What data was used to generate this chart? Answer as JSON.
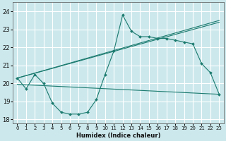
{
  "xlabel": "Humidex (Indice chaleur)",
  "bg_color": "#cce8ec",
  "grid_color": "#ffffff",
  "line_color": "#1a7a6e",
  "xlim": [
    -0.5,
    23.5
  ],
  "ylim": [
    17.8,
    24.5
  ],
  "yticks": [
    18,
    19,
    20,
    21,
    22,
    23,
    24
  ],
  "xtick_labels": [
    "0",
    "1",
    "2",
    "3",
    "4",
    "5",
    "6",
    "7",
    "8",
    "9",
    "10",
    "11",
    "12",
    "13",
    "14",
    "15",
    "16",
    "17",
    "18",
    "19",
    "20",
    "21",
    "22",
    "23"
  ],
  "line1_x": [
    0,
    1,
    2,
    3,
    4,
    5,
    6,
    7,
    8,
    9,
    10,
    11,
    12,
    13,
    14,
    15,
    16,
    17,
    18,
    19,
    20,
    21,
    22,
    23
  ],
  "line1_y": [
    20.3,
    19.7,
    20.5,
    20.0,
    18.9,
    18.4,
    18.3,
    18.3,
    18.4,
    19.1,
    20.5,
    21.8,
    23.8,
    22.9,
    22.6,
    22.6,
    22.5,
    22.5,
    22.4,
    22.3,
    22.2,
    21.1,
    20.6,
    19.4
  ],
  "line2_x": [
    0,
    23
  ],
  "line2_y": [
    20.3,
    23.5
  ],
  "line3_x": [
    0,
    23
  ],
  "line3_y": [
    20.3,
    23.4
  ],
  "line4_x": [
    0,
    23
  ],
  "line4_y": [
    19.95,
    19.4
  ]
}
